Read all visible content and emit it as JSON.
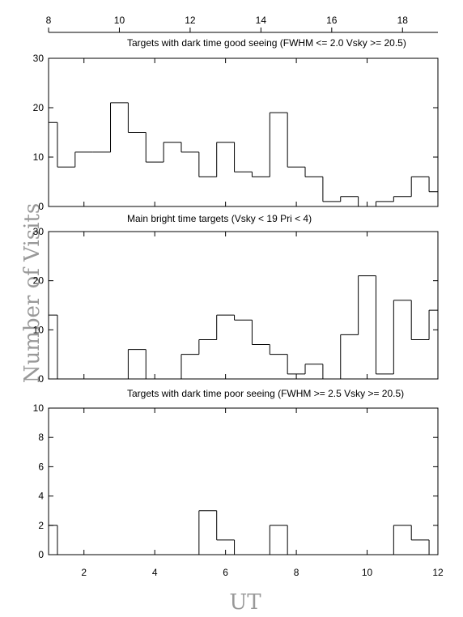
{
  "chart_data": [
    {
      "type": "histogram",
      "title": "Targets with dark time good seeing (FWHM <= 2.0 Vsky >= 20.5)",
      "ylabel": "Number of Visits",
      "bins": [
        0.75,
        1.25,
        1.75,
        2.25,
        2.75,
        3.25,
        3.75,
        4.25,
        4.75,
        5.25,
        5.75,
        6.25,
        6.75,
        7.25,
        7.75,
        8.25,
        8.75,
        9.25,
        9.75,
        10.25,
        10.75,
        11.25,
        11.75,
        12.25
      ],
      "values": [
        17,
        8,
        11,
        11,
        21,
        15,
        9,
        13,
        11,
        6,
        13,
        7,
        6,
        19,
        8,
        6,
        1,
        2,
        0,
        1,
        2,
        6,
        3
      ],
      "xlim": [
        1,
        12
      ],
      "ylim": [
        0,
        30
      ],
      "yticks": [
        0,
        10,
        20,
        30
      ],
      "x2lim": [
        8,
        19
      ],
      "x2ticks": [
        8,
        10,
        12,
        14,
        16,
        18
      ]
    },
    {
      "type": "histogram",
      "title": "Main bright time targets (Vsky < 19 Pri < 4)",
      "bins": [
        0.75,
        1.25,
        1.75,
        2.25,
        2.75,
        3.25,
        3.75,
        4.25,
        4.75,
        5.25,
        5.75,
        6.25,
        6.75,
        7.25,
        7.75,
        8.25,
        8.75,
        9.25,
        9.75,
        10.25,
        10.75,
        11.25,
        11.75,
        12.25
      ],
      "values": [
        13,
        0,
        0,
        0,
        0,
        6,
        0,
        0,
        5,
        8,
        13,
        12,
        7,
        5,
        1,
        3,
        0,
        9,
        21,
        1,
        16,
        8,
        14
      ],
      "xlim": [
        1,
        12
      ],
      "ylim": [
        0,
        30
      ],
      "yticks": [
        0,
        10,
        20,
        30
      ]
    },
    {
      "type": "histogram",
      "title": "Targets with dark time poor seeing (FWHM >= 2.5 Vsky >= 20.5)",
      "xlabel": "UT",
      "bins": [
        0.75,
        1.25,
        1.75,
        2.25,
        2.75,
        3.25,
        3.75,
        4.25,
        4.75,
        5.25,
        5.75,
        6.25,
        6.75,
        7.25,
        7.75,
        8.25,
        8.75,
        9.25,
        9.75,
        10.25,
        10.75,
        11.25,
        11.75,
        12.25
      ],
      "values": [
        2,
        0,
        0,
        0,
        0,
        0,
        0,
        0,
        0,
        3,
        1,
        0,
        0,
        2,
        0,
        0,
        0,
        0,
        0,
        0,
        2,
        1,
        0
      ],
      "xlim": [
        1,
        12
      ],
      "ylim": [
        0,
        10
      ],
      "yticks": [
        0,
        2,
        4,
        6,
        8,
        10
      ],
      "xticks": [
        2,
        4,
        6,
        8,
        10,
        12
      ]
    }
  ]
}
